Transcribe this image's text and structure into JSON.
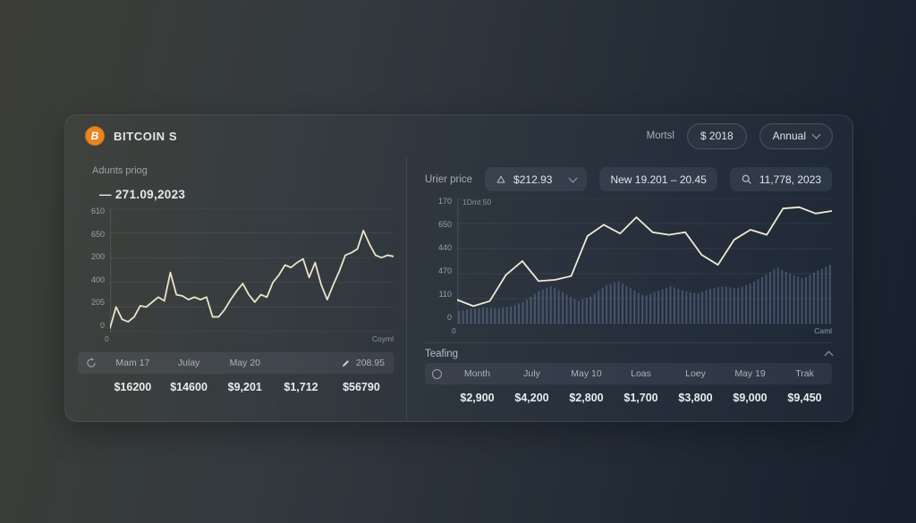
{
  "colors": {
    "accent_orange": "#e8851f",
    "line_cream": "#ece4c9",
    "volume_bar": "#64779a",
    "card_text": "#cdd3da"
  },
  "header": {
    "logo": "BITCOIN S",
    "period_label": "Mortsl",
    "year_button": "$ 2018",
    "range_button": "Annual"
  },
  "left_panel": {
    "title": "Adunts priog",
    "value_annotation": "— 271.09,2023",
    "table": {
      "headers": [
        "Mam 17",
        "Julay",
        "May 20"
      ],
      "edit_value": "208.95",
      "values": [
        "$16200",
        "$14600",
        "$9,201",
        "$1,712",
        "$56790"
      ]
    }
  },
  "right_panel": {
    "price_label": "Urier price",
    "price_value": "$212.93",
    "range_value": "New 19.201 – 20.45",
    "date_value": "11,778, 2023",
    "section_label": "Teafing",
    "table": {
      "headers": [
        "Month",
        "July",
        "May 10",
        "Loas",
        "Loey",
        "May 19",
        "Trak"
      ],
      "values": [
        "$2,900",
        "$4,200",
        "$2,800",
        "$1,700",
        "$3,800",
        "$9,000",
        "$9,450"
      ]
    }
  },
  "chart_data": [
    {
      "type": "line",
      "title": "Adunts priog",
      "annotation": "271.09,2023",
      "y_ticks": [
        "610",
        "650",
        "200",
        "400",
        "205",
        "0"
      ],
      "x_start_label": "0",
      "x_end_label": "Coyml",
      "line_color": "#ece4c9",
      "grid": "horizontal",
      "values": [
        3,
        20,
        10,
        8,
        12,
        21,
        20,
        24,
        28,
        25,
        48,
        30,
        29,
        26,
        28,
        26,
        28,
        12,
        12,
        18,
        26,
        33,
        39,
        30,
        24,
        30,
        28,
        40,
        46,
        54,
        52,
        56,
        59,
        44,
        56,
        38,
        26,
        38,
        49,
        62,
        64,
        67,
        82,
        71,
        62,
        60,
        62,
        61
      ]
    },
    {
      "type": "line",
      "top_label": "1Dmt 50",
      "y_ticks": [
        "170",
        "650",
        "440",
        "470",
        "110",
        "0"
      ],
      "x_start_label": "0",
      "x_end_label": "Caml",
      "line_color": "#f0ead6",
      "bar_color": "#64779a",
      "grid": "horizontal",
      "values": [
        19,
        14,
        18,
        39,
        50,
        34,
        35,
        38,
        70,
        79,
        72,
        85,
        73,
        71,
        73,
        55,
        47,
        67,
        75,
        71,
        92,
        93,
        88,
        90
      ],
      "volume_envelope": [
        10,
        12,
        13,
        12,
        14,
        18,
        26,
        30,
        24,
        18,
        22,
        30,
        34,
        28,
        22,
        26,
        30,
        26,
        24,
        28,
        30,
        28,
        32,
        38,
        45,
        40,
        36,
        42,
        47
      ],
      "bars_count": 94
    }
  ]
}
